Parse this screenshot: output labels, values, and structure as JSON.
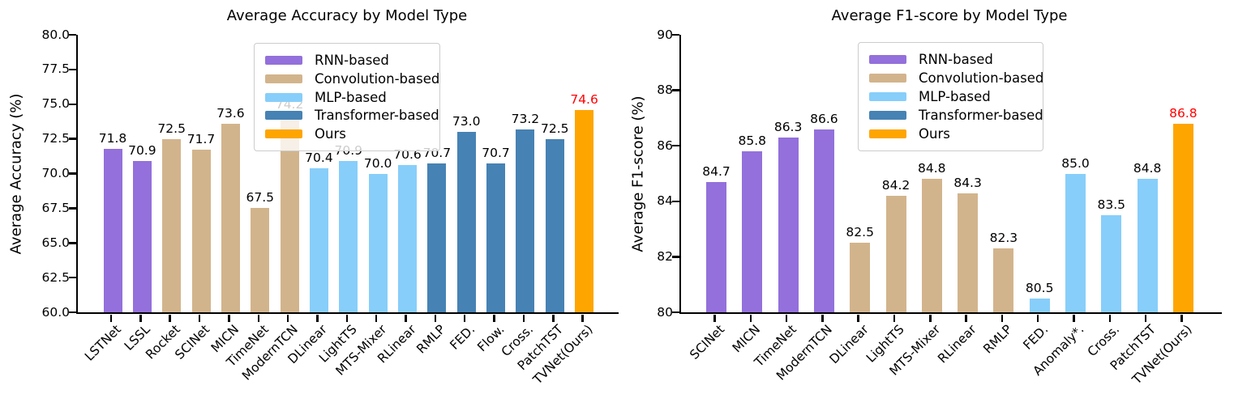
{
  "palette": {
    "RNN-based": "#9370DB",
    "Convolution-based": "#D2B48C",
    "MLP-based": "#87CEFA",
    "Transformer-based": "#4682B4",
    "Ours": "#FFA500"
  },
  "label_color_default": "#000000",
  "label_color_highlight": "#ff0000",
  "chart_data": [
    {
      "type": "bar",
      "title": "Average Accuracy by Model Type",
      "xlabel": "",
      "ylabel": "Average Accuracy (%)",
      "ylim": [
        60.0,
        80.0
      ],
      "yticks": [
        60.0,
        62.5,
        65.0,
        67.5,
        70.0,
        72.5,
        75.0,
        77.5,
        80.0
      ],
      "ytick_labels": [
        "60.0",
        "62.5",
        "65.0",
        "67.5",
        "70.0",
        "72.5",
        "75.0",
        "77.5",
        "80.0"
      ],
      "grid": false,
      "legend_position": "upper center",
      "legend_entries": [
        "RNN-based",
        "Convolution-based",
        "MLP-based",
        "Transformer-based",
        "Ours"
      ],
      "categories": [
        "LSTNet",
        "LSSL",
        "Rocket",
        "SCINet",
        "MICN",
        "TimeNet",
        "ModernTCN",
        "DLinear",
        "LightTS",
        "MTS-Mixer",
        "RLinear",
        "RMLP",
        "FED.",
        "Flow.",
        "Cross.",
        "PatchTST",
        "TVNet(Ours)"
      ],
      "values": [
        71.8,
        70.9,
        72.5,
        71.7,
        73.6,
        67.5,
        74.2,
        70.4,
        70.9,
        70.0,
        70.6,
        70.7,
        73.0,
        70.7,
        73.2,
        72.5,
        74.6
      ],
      "value_labels": [
        "71.8",
        "70.9",
        "72.5",
        "71.7",
        "73.6",
        "67.5",
        "74.2",
        "70.4",
        "70.9",
        "70.0",
        "70.6",
        "70.7",
        "73.0",
        "70.7",
        "73.2",
        "72.5",
        "74.6"
      ],
      "groups": [
        "RNN-based",
        "RNN-based",
        "Convolution-based",
        "Convolution-based",
        "Convolution-based",
        "Convolution-based",
        "Convolution-based",
        "MLP-based",
        "MLP-based",
        "MLP-based",
        "MLP-based",
        "Transformer-based",
        "Transformer-based",
        "Transformer-based",
        "Transformer-based",
        "Transformer-based",
        "Ours"
      ]
    },
    {
      "type": "bar",
      "title": "Average F1-score by Model Type",
      "xlabel": "",
      "ylabel": "Average F1-score (%)",
      "ylim": [
        80,
        90
      ],
      "yticks": [
        80,
        82,
        84,
        86,
        88,
        90
      ],
      "ytick_labels": [
        "80",
        "82",
        "84",
        "86",
        "88",
        "90"
      ],
      "grid": false,
      "legend_position": "upper center",
      "legend_entries": [
        "RNN-based",
        "Convolution-based",
        "MLP-based",
        "Transformer-based",
        "Ours"
      ],
      "categories": [
        "SCINet",
        "MICN",
        "TimeNet",
        "ModernTCN",
        "DLinear",
        "LightTS",
        "MTS-Mixer",
        "RLinear",
        "RMLP",
        "FED.",
        "Anomaly*.",
        "Cross.",
        "PatchTST",
        "TVNet(Ours)"
      ],
      "values": [
        84.7,
        85.8,
        86.3,
        86.6,
        82.5,
        84.2,
        84.8,
        84.3,
        82.3,
        80.5,
        85.0,
        83.5,
        84.8,
        86.8
      ],
      "value_labels": [
        "84.7",
        "85.8",
        "86.3",
        "86.6",
        "82.5",
        "84.2",
        "84.8",
        "84.3",
        "82.3",
        "80.5",
        "85.0",
        "83.5",
        "84.8",
        "86.8"
      ],
      "groups": [
        "RNN-based",
        "RNN-based",
        "RNN-based",
        "RNN-based",
        "Convolution-based",
        "Convolution-based",
        "Convolution-based",
        "Convolution-based",
        "Convolution-based",
        "MLP-based",
        "MLP-based",
        "MLP-based",
        "MLP-based",
        "Ours"
      ]
    }
  ]
}
